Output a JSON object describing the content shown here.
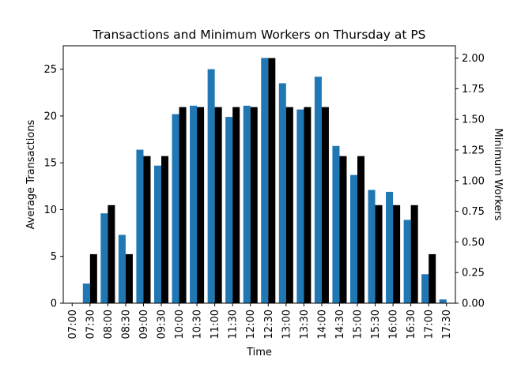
{
  "chart_data": {
    "type": "bar",
    "title": "Transactions and Minimum Workers on Thursday at PS",
    "xlabel": "Time",
    "ylabel_left": "Average Transactions",
    "ylabel_right": "Minimum Workers",
    "categories": [
      "07:00",
      "07:30",
      "08:00",
      "08:30",
      "09:00",
      "09:30",
      "10:00",
      "10:30",
      "11:00",
      "11:30",
      "12:00",
      "12:30",
      "13:00",
      "13:30",
      "14:00",
      "14:30",
      "15:00",
      "15:30",
      "16:00",
      "16:30",
      "17:00",
      "17:30"
    ],
    "series": [
      {
        "name": "Average Transactions",
        "axis": "left",
        "color": "#1f77b4",
        "values": [
          0,
          2.1,
          9.6,
          7.3,
          16.4,
          14.7,
          20.2,
          21.1,
          25.0,
          19.9,
          21.1,
          26.2,
          23.5,
          20.7,
          24.2,
          16.8,
          13.7,
          12.1,
          11.9,
          8.9,
          3.1,
          0.4
        ]
      },
      {
        "name": "Minimum Workers",
        "axis": "right",
        "color": "#000000",
        "values": [
          0,
          0.4,
          0.8,
          0.4,
          1.2,
          1.2,
          1.6,
          1.6,
          1.6,
          1.6,
          1.6,
          2.0,
          1.6,
          1.6,
          1.6,
          1.2,
          1.2,
          0.8,
          0.8,
          0.8,
          0.4,
          0
        ]
      }
    ],
    "ylim_left": [
      0,
      27.5
    ],
    "yticks_left": [
      0,
      5,
      10,
      15,
      20,
      25
    ],
    "ylim_right": [
      0,
      2.1
    ],
    "yticks_right": [
      "0.00",
      "0.25",
      "0.50",
      "0.75",
      "1.00",
      "1.25",
      "1.50",
      "1.75",
      "2.00"
    ],
    "grid": false,
    "legend": "none"
  }
}
